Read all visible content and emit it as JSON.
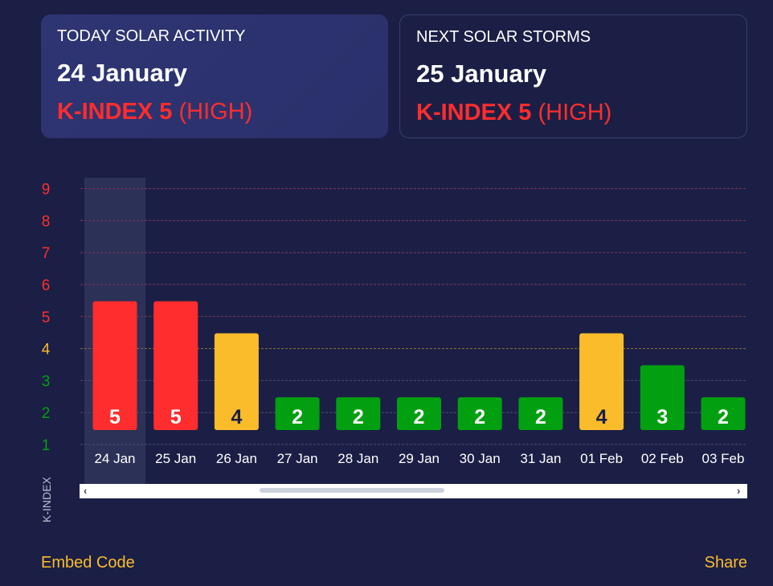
{
  "today": {
    "title": "TODAY SOLAR ACTIVITY",
    "date": "24 January",
    "kindex": "K-INDEX 5",
    "level": "(HIGH)"
  },
  "next": {
    "title": "NEXT SOLAR STORMS",
    "date": "25 January",
    "kindex": "K-INDEX 5",
    "level": "(HIGH)"
  },
  "colors": {
    "high": "#ff2d2d",
    "medium": "#fbbc2c",
    "low": "#02a010",
    "background": "#1b1f45"
  },
  "chart_data": {
    "type": "bar",
    "ylabel": "K-INDEX",
    "yticks": [
      "1",
      "2",
      "3",
      "4",
      "5",
      "6",
      "7",
      "8",
      "9"
    ],
    "ylim": [
      1,
      9
    ],
    "categories": [
      "24 Jan",
      "25 Jan",
      "26 Jan",
      "27 Jan",
      "28 Jan",
      "29 Jan",
      "30 Jan",
      "31 Jan",
      "01 Feb",
      "02 Feb",
      "03 Feb"
    ],
    "values": [
      5,
      5,
      4,
      2,
      2,
      2,
      2,
      2,
      4,
      3,
      2
    ],
    "highlighted": "24 Jan"
  },
  "footer": {
    "embed": "Embed Code",
    "share": "Share"
  }
}
